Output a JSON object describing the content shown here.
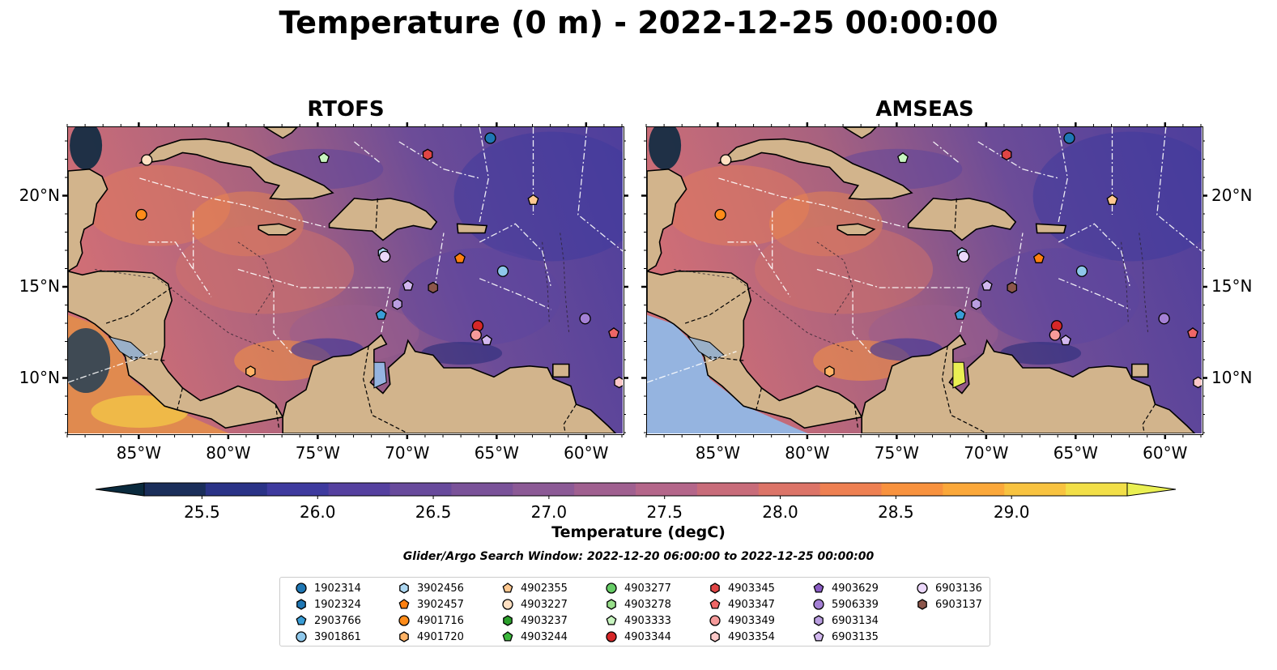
{
  "title": "Temperature (0 m) - 2022-12-25 00:00:00",
  "panels": [
    {
      "title": "RTOFS",
      "variant": "rtofs"
    },
    {
      "title": "AMSEAS",
      "variant": "amseas"
    }
  ],
  "lon_ticks": [
    "85°W",
    "80°W",
    "75°W",
    "70°W",
    "65°W",
    "60°W"
  ],
  "lat_ticks": [
    "20°N",
    "15°N",
    "10°N"
  ],
  "colorbar": {
    "label": "Temperature (degC)",
    "min": 25.25,
    "max": 29.5,
    "ticks": [
      "25.5",
      "26.0",
      "26.5",
      "27.0",
      "27.5",
      "28.0",
      "28.5",
      "29.0"
    ],
    "colors": [
      "#0a2a3d",
      "#1a2e5a",
      "#2a3387",
      "#3e3a9e",
      "#55409f",
      "#684a9c",
      "#7a5299",
      "#8c5a96",
      "#a06090",
      "#b4668a",
      "#c86c7a",
      "#dc7468",
      "#ee8052",
      "#f8923e",
      "#fba83a",
      "#f8c340",
      "#f2df48",
      "#eaf053"
    ],
    "extend": "both"
  },
  "search_window": "Glider/Argo Search Window: 2022-12-20 06:00:00 to 2022-12-25 00:00:00",
  "legend": [
    {
      "id": "1902314",
      "color": "#1f77b4",
      "marker": "circle"
    },
    {
      "id": "1902324",
      "color": "#1f77b4",
      "marker": "hexagon"
    },
    {
      "id": "2903766",
      "color": "#3a9dd6",
      "marker": "pentagon"
    },
    {
      "id": "3901861",
      "color": "#8ec7ea",
      "marker": "circle"
    },
    {
      "id": "3902456",
      "color": "#aed8f2",
      "marker": "hexagon"
    },
    {
      "id": "3902457",
      "color": "#ff7f0e",
      "marker": "pentagon"
    },
    {
      "id": "4901716",
      "color": "#ff8c1a",
      "marker": "circle"
    },
    {
      "id": "4901720",
      "color": "#ffb366",
      "marker": "hexagon"
    },
    {
      "id": "4902355",
      "color": "#ffc890",
      "marker": "pentagon"
    },
    {
      "id": "4903227",
      "color": "#ffe0c2",
      "marker": "circle"
    },
    {
      "id": "4903237",
      "color": "#2ca02c",
      "marker": "hexagon"
    },
    {
      "id": "4903244",
      "color": "#3cb83c",
      "marker": "pentagon"
    },
    {
      "id": "4903277",
      "color": "#66cc66",
      "marker": "circle"
    },
    {
      "id": "4903278",
      "color": "#98df8a",
      "marker": "hexagon"
    },
    {
      "id": "4903333",
      "color": "#c8f5c0",
      "marker": "pentagon"
    },
    {
      "id": "4903344",
      "color": "#d62728",
      "marker": "circle"
    },
    {
      "id": "4903345",
      "color": "#e04545",
      "marker": "hexagon"
    },
    {
      "id": "4903347",
      "color": "#ee6666",
      "marker": "pentagon"
    },
    {
      "id": "4903349",
      "color": "#f59a9a",
      "marker": "circle"
    },
    {
      "id": "4903354",
      "color": "#fcc8c8",
      "marker": "hexagon"
    },
    {
      "id": "4903629",
      "color": "#8a5cc4",
      "marker": "pentagon"
    },
    {
      "id": "5906339",
      "color": "#a480d4",
      "marker": "circle"
    },
    {
      "id": "6903134",
      "color": "#b99ee0",
      "marker": "hexagon"
    },
    {
      "id": "6903135",
      "color": "#d2b8ef",
      "marker": "pentagon"
    },
    {
      "id": "6903136",
      "color": "#ecd8fb",
      "marker": "circle"
    },
    {
      "id": "6903137",
      "color": "#8c564b",
      "marker": "hexagon"
    }
  ],
  "floats": [
    {
      "id": "4901716",
      "lon": -84.9,
      "lat": 19.0
    },
    {
      "id": "4903227",
      "lon": -84.6,
      "lat": 22.0
    },
    {
      "id": "4903333",
      "lon": -74.7,
      "lat": 22.1
    },
    {
      "id": "4903345",
      "lon": -68.9,
      "lat": 22.3
    },
    {
      "id": "1902314",
      "lon": -65.4,
      "lat": 23.2
    },
    {
      "id": "4902355",
      "lon": -63.0,
      "lat": 19.8
    },
    {
      "id": "3902456",
      "lon": -71.4,
      "lat": 16.9
    },
    {
      "id": "6903136",
      "lon": -71.3,
      "lat": 16.7
    },
    {
      "id": "3902457",
      "lon": -67.1,
      "lat": 16.6
    },
    {
      "id": "3901861",
      "lon": -64.7,
      "lat": 15.9
    },
    {
      "id": "6903135",
      "lon": -70.0,
      "lat": 15.1
    },
    {
      "id": "6903137",
      "lon": -68.6,
      "lat": 15.0
    },
    {
      "id": "6903134",
      "lon": -70.6,
      "lat": 14.1
    },
    {
      "id": "2903766",
      "lon": -71.5,
      "lat": 13.5
    },
    {
      "id": "4903344",
      "lon": -66.1,
      "lat": 12.9
    },
    {
      "id": "4903349",
      "lon": -66.2,
      "lat": 12.4
    },
    {
      "id": "6903135",
      "lon": -65.6,
      "lat": 12.1
    },
    {
      "id": "5906339",
      "lon": -60.1,
      "lat": 13.3
    },
    {
      "id": "4903347",
      "lon": -58.5,
      "lat": 12.5
    },
    {
      "id": "4901720",
      "lon": -78.8,
      "lat": 10.4
    },
    {
      "id": "4903354",
      "lon": -58.2,
      "lat": 9.8
    }
  ]
}
